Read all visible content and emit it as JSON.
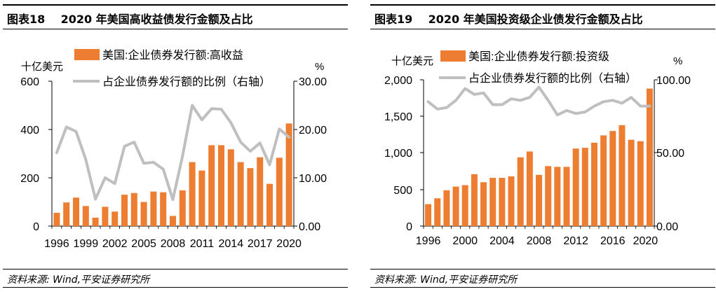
{
  "colors": {
    "bar": "#ED7D31",
    "line": "#BFBFBF",
    "axis": "#000000"
  },
  "charts": [
    {
      "figure_label": "图表18",
      "title": "2020 年美国高收益债发行金额及占比",
      "source": "资料来源: Wind,平安证券研究所",
      "left_unit": "十亿美元",
      "right_unit": "%",
      "left_ticks": [
        "0",
        "200",
        "400",
        "600"
      ],
      "right_ticks": [
        "0.00",
        "10.00",
        "20.00",
        "30.00"
      ],
      "x_tick_labels": [
        "1996",
        "1999",
        "2002",
        "2005",
        "2008",
        "2011",
        "2014",
        "2017",
        "2020"
      ],
      "legend_bar": "美国:企业债券发行额:高收益",
      "legend_line": "占企业债券发行额的比例（右轴）"
    },
    {
      "figure_label": "图表19",
      "title": "2020 年美国投资级企业债发行金额及占比",
      "source": "资料来源: Wind,平安证券研究所",
      "left_unit": "十亿美元",
      "right_unit": "%",
      "left_ticks": [
        "0",
        "500",
        "1,000",
        "1,500",
        "2,000"
      ],
      "right_ticks": [
        "0.00",
        "50.00",
        "100.00"
      ],
      "x_tick_labels": [
        "1996",
        "2000",
        "2004",
        "2008",
        "2012",
        "2016",
        "2020"
      ],
      "legend_bar": "美国:企业债券发行额:投资级",
      "legend_line": "占企业债券发行额的比例（右轴）"
    }
  ],
  "chart_data": [
    {
      "type": "bar+line",
      "title": "2020 年美国高收益债发行金额及占比",
      "ylabel": "十亿美元",
      "y2label": "%",
      "ylim": [
        0,
        600
      ],
      "y2lim": [
        0,
        30
      ],
      "categories": [
        "1996",
        "1997",
        "1998",
        "1999",
        "2000",
        "2001",
        "2002",
        "2003",
        "2004",
        "2005",
        "2006",
        "2007",
        "2008",
        "2009",
        "2010",
        "2011",
        "2012",
        "2013",
        "2014",
        "2015",
        "2016",
        "2017",
        "2018",
        "2019",
        "2020"
      ],
      "series": [
        {
          "name": "美国:企业债券发行额:高收益",
          "axis": "left",
          "kind": "bar",
          "values": [
            55,
            98,
            118,
            83,
            35,
            80,
            60,
            130,
            137,
            100,
            143,
            140,
            42,
            148,
            265,
            230,
            335,
            335,
            318,
            265,
            240,
            285,
            175,
            283,
            425
          ]
        },
        {
          "name": "占企业债券发行额的比例（右轴）",
          "axis": "right",
          "kind": "line",
          "values": [
            15.2,
            20.5,
            19.6,
            13.8,
            5.6,
            10.0,
            8.8,
            16.5,
            17.4,
            13.0,
            13.2,
            11.8,
            5.5,
            14.5,
            25.0,
            22.0,
            24.3,
            24.2,
            21.4,
            17.4,
            15.5,
            17.2,
            12.7,
            20.1,
            18.4
          ]
        }
      ]
    },
    {
      "type": "bar+line",
      "title": "2020 年美国投资级企业债发行金额及占比",
      "ylabel": "十亿美元",
      "y2label": "%",
      "ylim": [
        0,
        2000
      ],
      "y2lim": [
        0,
        100
      ],
      "categories": [
        "1996",
        "1997",
        "1998",
        "1999",
        "2000",
        "2001",
        "2002",
        "2003",
        "2004",
        "2005",
        "2006",
        "2007",
        "2008",
        "2009",
        "2010",
        "2011",
        "2012",
        "2013",
        "2014",
        "2015",
        "2016",
        "2017",
        "2018",
        "2019",
        "2020"
      ],
      "series": [
        {
          "name": "美国:企业债券发行额:投资级",
          "axis": "left",
          "kind": "bar",
          "values": [
            300,
            380,
            490,
            540,
            560,
            710,
            600,
            660,
            660,
            680,
            940,
            1020,
            700,
            820,
            810,
            810,
            1060,
            1070,
            1140,
            1240,
            1300,
            1380,
            1180,
            1160,
            1880
          ]
        },
        {
          "name": "占企业债券发行额的比例（右轴）",
          "axis": "right",
          "kind": "line",
          "values": [
            85,
            80,
            81,
            86,
            94,
            90,
            91,
            83,
            83,
            87,
            86,
            88,
            95,
            86,
            76,
            79,
            77,
            78,
            82,
            85,
            86,
            84,
            88,
            82,
            82
          ]
        }
      ]
    }
  ]
}
